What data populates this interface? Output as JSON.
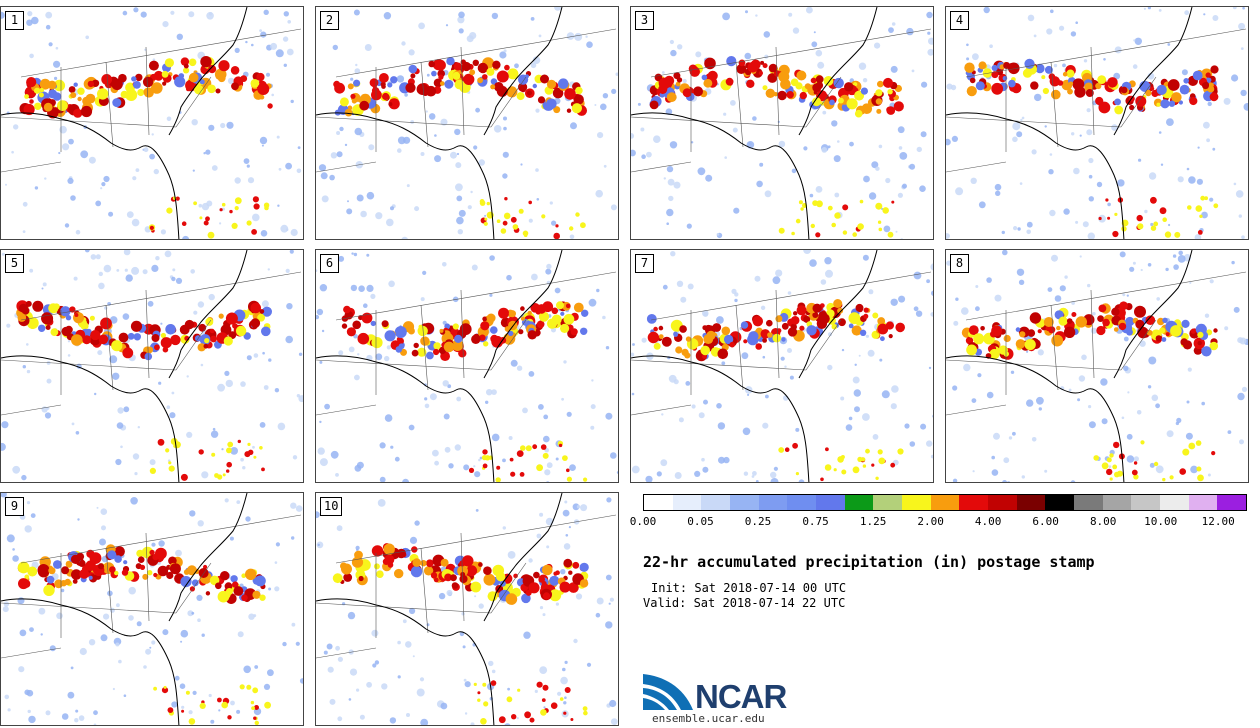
{
  "panels": [
    {
      "label": "1"
    },
    {
      "label": "2"
    },
    {
      "label": "3"
    },
    {
      "label": "4"
    },
    {
      "label": "5"
    },
    {
      "label": "6"
    },
    {
      "label": "7"
    },
    {
      "label": "8"
    },
    {
      "label": "9"
    },
    {
      "label": "10"
    }
  ],
  "colorbar": {
    "colors": [
      "#ffffff",
      "#e6eefc",
      "#c9d9f7",
      "#97b4f3",
      "#7e9cf1",
      "#6f8ef0",
      "#6278ec",
      "#0c9a18",
      "#b3d07a",
      "#f8f51c",
      "#f89d0e",
      "#e30a0a",
      "#c10202",
      "#7a0000",
      "#000000",
      "#7a7a7a",
      "#a5a5a5",
      "#c6c6c6",
      "#ececec",
      "#e0b0f0",
      "#9b1fe0"
    ],
    "tick_labels": [
      "0.00",
      "0.05",
      "0.25",
      "0.75",
      "1.25",
      "2.00",
      "4.00",
      "6.00",
      "8.00",
      "10.00",
      "12.00"
    ]
  },
  "title": "22-hr accumulated precipitation (in) postage stamp",
  "init": "Init: Sat 2018-07-14 00 UTC",
  "valid": "Valid: Sat 2018-07-14 22 UTC",
  "logo": {
    "text": "NCAR",
    "site": "ensemble.ucar.edu",
    "brand_color": "#0f6fb5"
  }
}
